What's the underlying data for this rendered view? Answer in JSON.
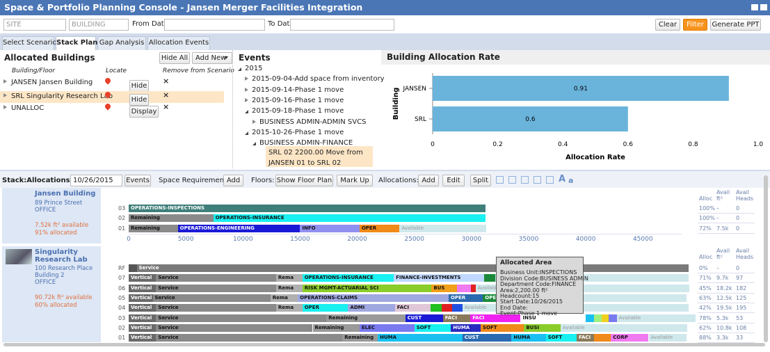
{
  "header": {
    "title": "Space & Portfolio Planning Console - Jansen Merger Facilities Integration"
  },
  "filters": {
    "site": "SITE",
    "building": "BUILDING",
    "from_date_label": "From Date:",
    "to_date_label": "To Date:",
    "buttons": [
      "Clear",
      "Filter",
      "Generate PPT"
    ]
  },
  "tabs": [
    "Select Scenario",
    "Stack Plan",
    "Gap Analysis",
    "Allocation Events"
  ],
  "allocated_buildings": {
    "title": "Allocated Buildings",
    "buttons": [
      "Hide All",
      "Add New"
    ],
    "columns": [
      "Building/Floor",
      "Locate",
      "Remove from Scenario"
    ],
    "rows": [
      {
        "name": "JANSEN Jansen Building",
        "action": "Hide"
      },
      {
        "name": "SRL Singularity Research Lab",
        "action": "Hide"
      },
      {
        "name": "UNALLOC",
        "action": "Display"
      }
    ]
  },
  "events": {
    "title": "Events",
    "tree": [
      {
        "text": "2015",
        "depth": 0,
        "open": true
      },
      {
        "text": "2015-09-04-Add space from inventory",
        "depth": 1,
        "open": false
      },
      {
        "text": "2015-09-14-Phase 1 move",
        "depth": 1,
        "open": false
      },
      {
        "text": "2015-09-16-Phase 1 move",
        "depth": 1,
        "open": false
      },
      {
        "text": "2015-09-18-Phase 1 move",
        "depth": 1,
        "open": true
      },
      {
        "text": "BUSINESS ADMIN-ADMIN SVCS",
        "depth": 2,
        "open": false
      },
      {
        "text": "2015-10-26-Phase 1 move",
        "depth": 1,
        "open": true
      },
      {
        "text": "BUSINESS ADMIN-FINANCE",
        "depth": 2,
        "open": true
      },
      {
        "text": "SRL 02 2200.00 Move from JANSEN 01 to SRL 02",
        "depth": 3
      }
    ]
  },
  "chart_data": {
    "type": "hbar",
    "title": "Building Allocation Rate",
    "categories": [
      "JANSEN",
      "SRL"
    ],
    "values": [
      0.91,
      0.6
    ],
    "color": "#6ab4dc",
    "xlim": [
      0,
      1
    ],
    "xticks": [
      0,
      0.2,
      0.4,
      0.6,
      0.8,
      {
        "value": 1,
        "label": "1.0"
      }
    ],
    "xlabel": "Allocation Rate",
    "ylabel": "Building"
  },
  "stack_plan": {
    "toolbar": {
      "as_of_label": "Stack:Allocations as of:",
      "as_of_date": "10/26/2015",
      "events_button": "Events",
      "space_req_label": "Space Requirements:",
      "space_req_add": "Add",
      "floors_label": "Floors:",
      "floor_buttons": [
        "Show Floor Plan",
        "Mark Up"
      ],
      "alloc_label": "Allocations:",
      "alloc_buttons": [
        "Add",
        "Edit",
        "Split"
      ],
      "font_buttons": [
        "A",
        "a"
      ]
    },
    "stat_columns": [
      "Alloc",
      "Avail ft²",
      "Avail Heads"
    ],
    "xlim": [
      0,
      49000
    ],
    "xticks": [
      0,
      5000,
      10000,
      15000,
      20000,
      25000,
      30000,
      35000,
      40000,
      45000
    ],
    "buildings": [
      {
        "name": "Jansen Building",
        "details": [
          "89 Prince Street",
          "OFFICE"
        ],
        "availability": [
          "7.52k ft² available",
          "91% allocated"
        ],
        "floors": [
          {
            "floor": "03",
            "stats": [
              "100%",
              "–",
              "0"
            ],
            "segments": [
              {
                "label": "OPERATIONS-INSPECTIONS",
                "value": 31200,
                "color": "#3f7f7a"
              }
            ]
          },
          {
            "floor": "02",
            "stats": [
              "100%",
              "–",
              "0"
            ],
            "segments": [
              {
                "label": "Remaining",
                "value": 7400,
                "color": "#8a8a8a"
              },
              {
                "label": "OPERATIONS-INSURANCE",
                "value": 23800,
                "color": "#19f0f0"
              }
            ]
          },
          {
            "floor": "01",
            "stats": [
              "72%",
              "7.5k",
              "0"
            ],
            "segments": [
              {
                "label": "Remaining",
                "value": 4300,
                "color": "#8a8a8a"
              },
              {
                "label": "OPERATIONS-ENGINEERING",
                "value": 10700,
                "color": "#1a1ad6"
              },
              {
                "label": "INFO",
                "value": 5200,
                "color": "#9090f0"
              },
              {
                "label": "OPER",
                "value": 3500,
                "color": "#f08a1a"
              },
              {
                "label": "Available",
                "value": 7600,
                "color": "#cfe8ec"
              }
            ]
          }
        ]
      },
      {
        "name": "Singularity Research Lab",
        "details": [
          "100 Research Place",
          "Building 2",
          "OFFICE"
        ],
        "availability": [
          "90.72k ft² available",
          "60% allocated"
        ],
        "floors": [
          {
            "floor": "RF",
            "stats": [
              "0%",
              "–",
              "0"
            ],
            "segments": [
              {
                "value": 700,
                "color": "#555555"
              },
              {
                "label": "Service",
                "value": 48300,
                "color": "#7a7a7a"
              }
            ]
          },
          {
            "floor": "07",
            "stats": [
              "71%",
              "9.7k",
              "97"
            ],
            "segments": [
              {
                "label": "Vertical",
                "value": 2400,
                "color": "#6a6a6a"
              },
              {
                "label": "Service",
                "value": 10500,
                "color": "#8a8a8a"
              },
              {
                "label": "Rema",
                "value": 2300,
                "color": "#b0b0b0"
              },
              {
                "label": "OPERATIONS-INSURANCE",
                "value": 8000,
                "color": "#19f0f0"
              },
              {
                "label": "FINANCE-INVESTMENTS",
                "value": 7900,
                "color": "#c0d8ff"
              },
              {
                "value": 1000,
                "color": "#1a8a3a"
              },
              {
                "label": "Available",
                "value": 16900,
                "color": "#cfe8ec"
              }
            ]
          },
          {
            "floor": "06",
            "stats": [
              "45%",
              "18.2k",
              "182"
            ],
            "segments": [
              {
                "label": "Vertical",
                "value": 2400,
                "color": "#6a6a6a"
              },
              {
                "label": "Service",
                "value": 10500,
                "color": "#8a8a8a"
              },
              {
                "label": "Rema",
                "value": 2300,
                "color": "#b0b0b0"
              },
              {
                "label": "RISK MGMT-ACTUARIAL SCI",
                "value": 11300,
                "color": "#8acc2a"
              },
              {
                "label": "BUS",
                "value": 2250,
                "color": "#f0a01a"
              },
              {
                "value": 1200,
                "color": "#f07af0"
              },
              {
                "value": 400,
                "color": "#e02020"
              },
              {
                "label": "Available",
                "value": 18700,
                "color": "#cfe8ec"
              }
            ]
          },
          {
            "floor": "05",
            "stats": [
              "63%",
              "12.5k",
              "125"
            ],
            "segments": [
              {
                "label": "Vertical",
                "value": 2100,
                "color": "#6a6a6a"
              },
              {
                "label": "Service",
                "value": 10300,
                "color": "#8a8a8a"
              },
              {
                "label": "Rema",
                "value": 2400,
                "color": "#b0b0b0"
              },
              {
                "label": "OPERATIONS-CLAIMS",
                "value": 13200,
                "color": "#a0a8e0"
              },
              {
                "label": "OPER",
                "value": 3000,
                "color": "#2a6ab0"
              },
              {
                "label": "OPER",
                "value": 2600,
                "color": "#1a8a3a"
              },
              {
                "label": "Available",
                "value": 15200,
                "color": "#cfe8ec"
              }
            ]
          },
          {
            "floor": "04",
            "stats": [
              "42%",
              "19.5k",
              "195"
            ],
            "segments": [
              {
                "label": "Vertical",
                "value": 2400,
                "color": "#6a6a6a"
              },
              {
                "label": "Service",
                "value": 10500,
                "color": "#8a8a8a"
              },
              {
                "label": "Rema",
                "value": 2300,
                "color": "#b0b0b0"
              },
              {
                "label": "OPER",
                "value": 4000,
                "color": "#19f0f0"
              },
              {
                "label": "ADMI",
                "value": 4100,
                "color": "#a0a8e0"
              },
              {
                "label": "FACI",
                "value": 3100,
                "color": "#e0c8d8"
              },
              {
                "value": 1000,
                "color": "#20c020"
              },
              {
                "value": 900,
                "color": "#e02020"
              },
              {
                "value": 900,
                "color": "#2050e0"
              },
              {
                "label": "Available",
                "value": 19800,
                "color": "#cfe8ec"
              }
            ]
          },
          {
            "floor": "03",
            "stats": [
              "78%",
              "5.3k",
              "53"
            ],
            "segments": [
              {
                "label": "Vertical",
                "value": 2400,
                "color": "#6a6a6a"
              },
              {
                "label": "Service",
                "value": 14900,
                "color": "#8a8a8a"
              },
              {
                "label": "Remaining",
                "value": 6900,
                "color": "#9a9a9a"
              },
              {
                "label": "CUST",
                "value": 3300,
                "color": "#1a1ad6"
              },
              {
                "label": "FACI",
                "value": 2400,
                "color": "#8a7a5a"
              },
              {
                "label": "FACI",
                "value": 4400,
                "color": "#f020f0"
              },
              {
                "label": "INSU",
                "value": 5700,
                "color": "#ffffff"
              },
              {
                "value": 700,
                "color": "#19c0f0"
              },
              {
                "value": 700,
                "color": "#a0f080"
              },
              {
                "value": 600,
                "color": "#f0d020"
              },
              {
                "value": 700,
                "color": "#7a7af0"
              },
              {
                "label": "Available",
                "value": 6900,
                "color": "#cfe8ec"
              }
            ]
          },
          {
            "floor": "02",
            "stats": [
              "62%",
              "10.8k",
              "108"
            ],
            "segments": [
              {
                "label": "Vertical",
                "value": 2400,
                "color": "#6a6a6a"
              },
              {
                "label": "Service",
                "value": 13700,
                "color": "#8a8a8a"
              },
              {
                "label": "Remaining",
                "value": 4100,
                "color": "#9a9a9a"
              },
              {
                "label": "ELEC",
                "value": 4800,
                "color": "#7a7af0"
              },
              {
                "label": "SOFT",
                "value": 3200,
                "color": "#19f0f0"
              },
              {
                "label": "HUMA",
                "value": 2600,
                "color": "#2a2ac0"
              },
              {
                "label": "SOFT",
                "value": 3800,
                "color": "#f08a1a"
              },
              {
                "label": "BUSI",
                "value": 3200,
                "color": "#8acc2a"
              },
              {
                "label": "Available",
                "value": 11100,
                "color": "#cfe8ec"
              }
            ]
          },
          {
            "floor": "01",
            "stats": [
              "88%",
              "3.3k",
              "33"
            ],
            "segments": [
              {
                "label": "Vertical",
                "value": 2400,
                "color": "#6a6a6a"
              },
              {
                "label": "Service",
                "value": 16300,
                "color": "#8a8a8a"
              },
              {
                "label": "Remaining",
                "value": 3100,
                "color": "#9a9a9a"
              },
              {
                "label": "HUMA",
                "value": 7400,
                "color": "#19c0f0"
              },
              {
                "label": "CUST",
                "value": 4300,
                "color": "#2a6ab0"
              },
              {
                "label": "HUMA",
                "value": 3000,
                "color": "#19c0f0"
              },
              {
                "label": "SOFT",
                "value": 2700,
                "color": "#19f0f0"
              },
              {
                "label": "FACI",
                "value": 1500,
                "color": "#8a7a5a"
              },
              {
                "value": 1500,
                "color": "#f08a1a"
              },
              {
                "label": "CORP",
                "value": 3300,
                "color": "#f07af0"
              },
              {
                "label": "Available",
                "value": 3300,
                "color": "#cfe8ec"
              }
            ]
          }
        ]
      }
    ],
    "tooltip": [
      "Allocated Area",
      "Business Unit:INSPECTIONS",
      "Division Code:BUSINESS ADMIN",
      "Department Code:FINANCE",
      "Area:2,200.00 ft²",
      "Headcount:15",
      "Start Date:10/26/2015",
      "End Date:",
      "Event:Phase 1 move"
    ]
  }
}
